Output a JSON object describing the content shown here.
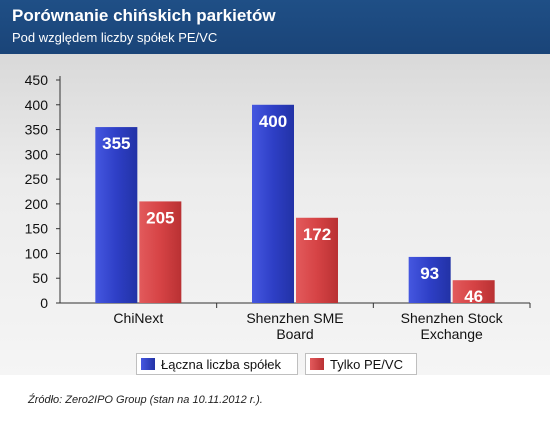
{
  "header": {
    "title": "Porównanie chińskich parkietów",
    "subtitle": "Pod względem liczby spółek PE/VC"
  },
  "colors": {
    "header_bg": "#1f4f86",
    "series_total": "#2f41c8",
    "series_pevc": "#d9494b"
  },
  "chart_data": {
    "type": "bar",
    "title": "Porównanie chińskich parkietów",
    "subtitle": "Pod względem liczby spółek PE/VC",
    "categories": [
      [
        "ChiNext"
      ],
      [
        "Shenzhen SME",
        "Board"
      ],
      [
        "Shenzhen Stock",
        "Exchange"
      ]
    ],
    "series": [
      {
        "name": "Łączna liczba spółek",
        "values": [
          355,
          400,
          93
        ]
      },
      {
        "name": "Tylko PE/VC",
        "values": [
          205,
          172,
          46
        ]
      }
    ],
    "ylim": [
      0,
      450
    ],
    "yticks": [
      0,
      50,
      100,
      150,
      200,
      250,
      300,
      350,
      400,
      450
    ],
    "grid": false,
    "legend_position": "bottom"
  },
  "legend": {
    "series_total_label": "Łączna liczba spółek",
    "series_pevc_label": "Tylko PE/VC"
  },
  "footer": {
    "source": "Źródło: Zero2IPO Group (stan na 10.11.2012 r.)."
  }
}
